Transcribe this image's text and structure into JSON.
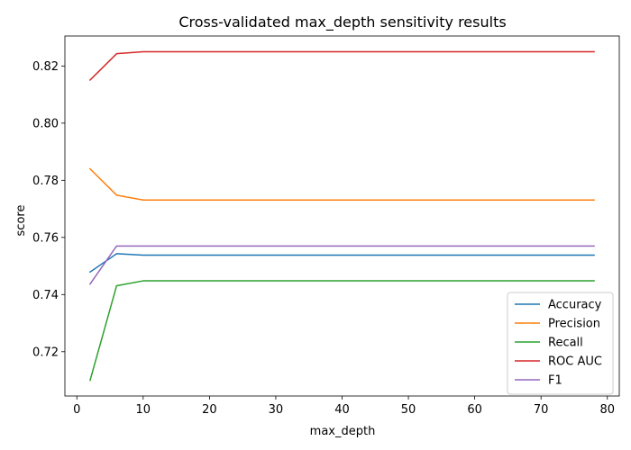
{
  "chart_data": {
    "type": "line",
    "title": "Cross-validated max_depth sensitivity results",
    "xlabel": "max_depth",
    "ylabel": "score",
    "xlim": [
      -1.8,
      81.8
    ],
    "ylim": [
      0.7045,
      0.8305
    ],
    "xticks": [
      0,
      10,
      20,
      30,
      40,
      50,
      60,
      70,
      80
    ],
    "yticks": [
      0.72,
      0.74,
      0.76,
      0.78,
      0.8,
      0.82
    ],
    "ytick_labels": [
      "0.72",
      "0.74",
      "0.76",
      "0.78",
      "0.80",
      "0.82"
    ],
    "grid": false,
    "legend_position": "lower-right",
    "x": [
      2,
      6,
      10,
      14,
      18,
      22,
      26,
      30,
      34,
      38,
      42,
      46,
      50,
      54,
      58,
      62,
      66,
      70,
      74,
      78
    ],
    "series": [
      {
        "name": "Accuracy",
        "color": "#1f77b4",
        "values": [
          0.7479,
          0.7543,
          0.7538,
          0.7538,
          0.7538,
          0.7538,
          0.7538,
          0.7538,
          0.7538,
          0.7538,
          0.7538,
          0.7538,
          0.7538,
          0.7538,
          0.7538,
          0.7538,
          0.7538,
          0.7538,
          0.7538,
          0.7538
        ]
      },
      {
        "name": "Precision",
        "color": "#ff7f0e",
        "values": [
          0.784,
          0.7748,
          0.7731,
          0.7731,
          0.7731,
          0.7731,
          0.7731,
          0.7731,
          0.7731,
          0.7731,
          0.7731,
          0.7731,
          0.7731,
          0.7731,
          0.7731,
          0.7731,
          0.7731,
          0.7731,
          0.7731,
          0.7731
        ]
      },
      {
        "name": "Recall",
        "color": "#2ca02c",
        "values": [
          0.71,
          0.7431,
          0.7448,
          0.7448,
          0.7448,
          0.7448,
          0.7448,
          0.7448,
          0.7448,
          0.7448,
          0.7448,
          0.7448,
          0.7448,
          0.7448,
          0.7448,
          0.7448,
          0.7448,
          0.7448,
          0.7448,
          0.7448
        ]
      },
      {
        "name": "ROC AUC",
        "color": "#d62728",
        "values": [
          0.8151,
          0.8243,
          0.825,
          0.825,
          0.825,
          0.825,
          0.825,
          0.825,
          0.825,
          0.825,
          0.825,
          0.825,
          0.825,
          0.825,
          0.825,
          0.825,
          0.825,
          0.825,
          0.825,
          0.825
        ]
      },
      {
        "name": "F1",
        "color": "#9467bd",
        "values": [
          0.7437,
          0.757,
          0.757,
          0.757,
          0.757,
          0.757,
          0.757,
          0.757,
          0.757,
          0.757,
          0.757,
          0.757,
          0.757,
          0.757,
          0.757,
          0.757,
          0.757,
          0.757,
          0.757,
          0.757
        ]
      }
    ]
  }
}
